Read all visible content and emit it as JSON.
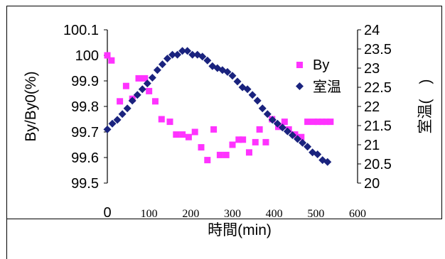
{
  "chart_data": {
    "type": "scatter",
    "xlabel": "時間(min)",
    "ylabel": "By/By0(%)",
    "y2label": "室温(　)",
    "xlim": [
      0,
      600
    ],
    "ylim": [
      99.5,
      100.1
    ],
    "y2lim": [
      20,
      24
    ],
    "x_ticks": [
      "0",
      "100",
      "200",
      "300",
      "400",
      "500",
      "600"
    ],
    "y_ticks": [
      "100.1",
      "100",
      "99.9",
      "99.8",
      "99.7",
      "99.6",
      "99.5"
    ],
    "y2_ticks": [
      "24",
      "23.5",
      "23",
      "22.5",
      "22",
      "21.5",
      "21",
      "20.5",
      "20"
    ],
    "grid": false,
    "legend_position": "top-right",
    "series": [
      {
        "name": "By",
        "axis": "left",
        "marker": "square",
        "color": "#ff33ff",
        "x": [
          0,
          10,
          30,
          45,
          60,
          75,
          90,
          100,
          115,
          130,
          150,
          165,
          180,
          195,
          210,
          225,
          240,
          255,
          270,
          285,
          300,
          315,
          325,
          340,
          355,
          365,
          380,
          395,
          410,
          425,
          435,
          450,
          465,
          480,
          495,
          505,
          515,
          525,
          535
        ],
        "y": [
          100.0,
          99.98,
          99.82,
          99.88,
          99.83,
          99.91,
          99.91,
          99.86,
          99.82,
          99.75,
          99.74,
          99.69,
          99.69,
          99.68,
          99.7,
          99.64,
          99.59,
          99.71,
          99.61,
          99.61,
          99.65,
          99.67,
          99.67,
          99.62,
          99.66,
          99.71,
          99.66,
          99.75,
          99.72,
          99.74,
          99.71,
          99.69,
          99.68,
          99.74,
          99.74,
          99.74,
          99.74,
          99.74,
          99.74
        ]
      },
      {
        "name": "室温",
        "axis": "right",
        "marker": "diamond",
        "color": "#1a237e",
        "x": [
          0,
          12,
          24,
          36,
          48,
          60,
          72,
          84,
          96,
          108,
          120,
          132,
          144,
          156,
          168,
          180,
          192,
          204,
          216,
          228,
          240,
          252,
          264,
          276,
          288,
          300,
          312,
          324,
          336,
          348,
          360,
          372,
          384,
          396,
          408,
          420,
          432,
          444,
          456,
          468,
          480,
          492,
          504,
          516,
          528
        ],
        "y": [
          21.4,
          21.55,
          21.65,
          21.8,
          21.95,
          22.15,
          22.3,
          22.45,
          22.6,
          22.75,
          22.95,
          23.1,
          23.25,
          23.35,
          23.35,
          23.45,
          23.45,
          23.35,
          23.35,
          23.3,
          23.2,
          23.05,
          23.0,
          22.95,
          22.9,
          22.8,
          22.65,
          22.5,
          22.45,
          22.3,
          22.15,
          21.95,
          21.8,
          21.65,
          21.55,
          21.45,
          21.35,
          21.25,
          21.15,
          21.05,
          20.95,
          20.8,
          20.75,
          20.6,
          20.55
        ]
      }
    ]
  }
}
